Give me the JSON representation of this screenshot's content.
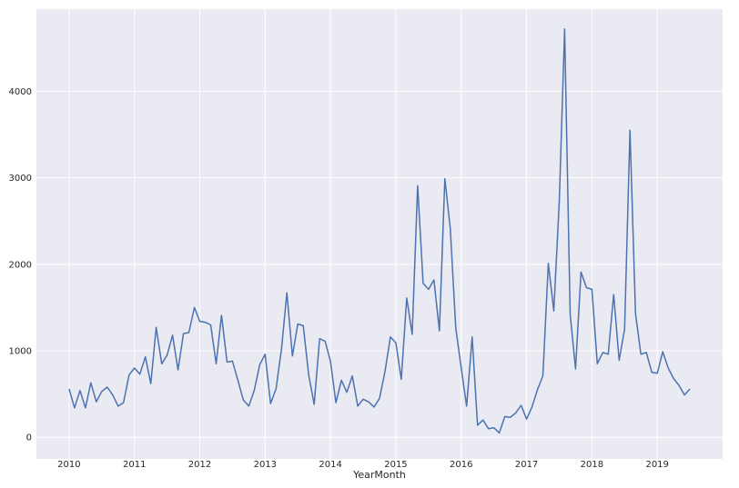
{
  "chart_data": {
    "type": "line",
    "title": "",
    "xlabel": "YearMonth",
    "ylabel": "",
    "xlim": [
      2009.5,
      2020.0
    ],
    "ylim": [
      -250,
      4950
    ],
    "grid": true,
    "legend": "none",
    "background_color": "#eaeaf2",
    "grid_color": "#ffffff",
    "line_color": "#4c72b0",
    "x_ticks": [
      2010,
      2011,
      2012,
      2013,
      2014,
      2015,
      2016,
      2017,
      2018,
      2019
    ],
    "x_tick_labels": [
      "2010",
      "2011",
      "2012",
      "2013",
      "2014",
      "2015",
      "2016",
      "2017",
      "2018",
      "2019"
    ],
    "y_ticks": [
      0,
      1000,
      2000,
      3000,
      4000
    ],
    "y_tick_labels": [
      "0",
      "1000",
      "2000",
      "3000",
      "4000"
    ],
    "series": [
      {
        "name": "",
        "x": [
          2010.0,
          2010.083,
          2010.167,
          2010.25,
          2010.333,
          2010.417,
          2010.5,
          2010.583,
          2010.667,
          2010.75,
          2010.833,
          2010.917,
          2011.0,
          2011.083,
          2011.167,
          2011.25,
          2011.333,
          2011.417,
          2011.5,
          2011.583,
          2011.667,
          2011.75,
          2011.833,
          2011.917,
          2012.0,
          2012.083,
          2012.167,
          2012.25,
          2012.333,
          2012.417,
          2012.5,
          2012.583,
          2012.667,
          2012.75,
          2012.833,
          2012.917,
          2013.0,
          2013.083,
          2013.167,
          2013.25,
          2013.333,
          2013.417,
          2013.5,
          2013.583,
          2013.667,
          2013.75,
          2013.833,
          2013.917,
          2014.0,
          2014.083,
          2014.167,
          2014.25,
          2014.333,
          2014.417,
          2014.5,
          2014.583,
          2014.667,
          2014.75,
          2014.833,
          2014.917,
          2015.0,
          2015.083,
          2015.167,
          2015.25,
          2015.333,
          2015.417,
          2015.5,
          2015.583,
          2015.667,
          2015.75,
          2015.833,
          2015.917,
          2016.0,
          2016.083,
          2016.167,
          2016.25,
          2016.333,
          2016.417,
          2016.5,
          2016.583,
          2016.667,
          2016.75,
          2016.833,
          2016.917,
          2017.0,
          2017.083,
          2017.167,
          2017.25,
          2017.333,
          2017.417,
          2017.5,
          2017.583,
          2017.667,
          2017.75,
          2017.833,
          2017.917,
          2018.0,
          2018.083,
          2018.167,
          2018.25,
          2018.333,
          2018.417,
          2018.5,
          2018.583,
          2018.667,
          2018.75,
          2018.833,
          2018.917,
          2019.0,
          2019.083,
          2019.167,
          2019.25,
          2019.333,
          2019.417,
          2019.5
        ],
        "y": [
          560,
          340,
          540,
          340,
          630,
          410,
          530,
          580,
          490,
          360,
          400,
          720,
          800,
          730,
          930,
          620,
          1270,
          850,
          950,
          1180,
          780,
          1200,
          1210,
          1500,
          1340,
          1330,
          1300,
          850,
          1410,
          870,
          880,
          660,
          430,
          360,
          540,
          840,
          960,
          390,
          560,
          1020,
          1670,
          940,
          1310,
          1290,
          720,
          380,
          1140,
          1110,
          880,
          400,
          660,
          520,
          710,
          360,
          440,
          410,
          350,
          450,
          760,
          1160,
          1090,
          670,
          1610,
          1190,
          2910,
          1780,
          1710,
          1820,
          1230,
          2990,
          2410,
          1260,
          800,
          360,
          1160,
          140,
          200,
          100,
          110,
          50,
          240,
          230,
          280,
          370,
          210,
          350,
          550,
          710,
          2010,
          1460,
          2720,
          4720,
          1420,
          790,
          1910,
          1730,
          1710,
          850,
          980,
          960,
          1650,
          890,
          1250,
          3550,
          1430,
          960,
          980,
          750,
          740,
          990,
          800,
          680,
          600,
          490,
          560
        ]
      }
    ]
  }
}
